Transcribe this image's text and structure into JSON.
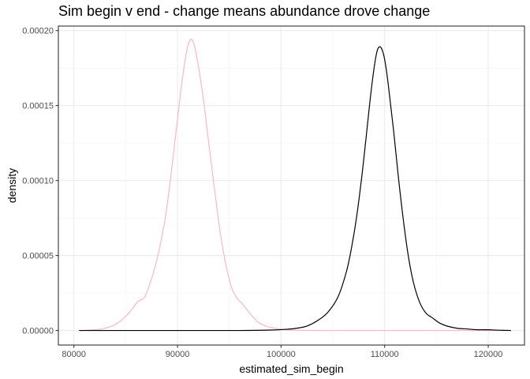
{
  "chart_data": {
    "type": "line",
    "title": "Sim begin v end - change means abundance drove change",
    "xlabel": "estimated_sim_begin",
    "ylabel": "density",
    "xlim": [
      78500,
      123500
    ],
    "ylim": [
      -9.7e-06,
      0.000203
    ],
    "x_ticks": [
      80000,
      90000,
      100000,
      110000,
      120000
    ],
    "x_tick_labels": [
      "80000",
      "90000",
      "100000",
      "110000",
      "120000"
    ],
    "y_ticks": [
      0,
      5e-05,
      0.0001,
      0.00015,
      0.0002
    ],
    "y_tick_labels": [
      "0.00000",
      "0.00005",
      "0.00010",
      "0.00015",
      "0.00020"
    ],
    "grid": true,
    "theme": "bw",
    "series": [
      {
        "color": "#ffb6c1",
        "x": [
          80500,
          82000,
          83000,
          84000,
          85000,
          85700,
          86200,
          86800,
          87300,
          87800,
          88300,
          88800,
          89200,
          89600,
          90000,
          90400,
          90800,
          91100,
          91400,
          91700,
          92000,
          92300,
          92600,
          93000,
          93400,
          93800,
          94200,
          94700,
          95200,
          95700,
          96300,
          96800,
          97300,
          97800,
          98500,
          99200,
          100000,
          101000,
          102000,
          104000,
          108000,
          114000,
          122200
        ],
        "y": [
          0,
          5e-07,
          1.5e-06,
          4e-06,
          9.5e-06,
          1.5e-05,
          1.95e-05,
          2.2e-05,
          3.05e-05,
          4.15e-05,
          5.6e-05,
          7.4e-05,
          9.4e-05,
          0.000117,
          0.000141,
          0.000164,
          0.000183,
          0.000192,
          0.000194,
          0.000188,
          0.000177,
          0.000164,
          0.000149,
          0.000126,
          0.000104,
          8.2e-05,
          6.2e-05,
          4.3e-05,
          2.9e-05,
          2.2e-05,
          1.75e-05,
          1.3e-05,
          9e-06,
          5.5e-06,
          3e-06,
          1.8e-06,
          8e-07,
          3e-07,
          1e-07,
          0,
          0,
          0,
          0
        ]
      },
      {
        "color": "#000000",
        "x": [
          80500,
          90000,
          96000,
          99000,
          100500,
          101500,
          102500,
          103500,
          104500,
          105500,
          106300,
          106800,
          107300,
          107800,
          108200,
          108600,
          109000,
          109300,
          109600,
          109900,
          110200,
          110500,
          110900,
          111300,
          111800,
          112300,
          112800,
          113400,
          114000,
          114600,
          115300,
          116000,
          117000,
          118000,
          119000,
          120000,
          121000,
          122200
        ],
        "y": [
          0,
          0,
          0,
          3e-07,
          8e-07,
          1.5e-06,
          3e-06,
          6.5e-06,
          1.2e-05,
          2.25e-05,
          3.9e-05,
          5.5e-05,
          7.6e-05,
          0.000103,
          0.000128,
          0.000154,
          0.000176,
          0.000187,
          0.000189,
          0.000184,
          0.000172,
          0.000155,
          0.000131,
          0.000104,
          7.4e-05,
          4.9e-05,
          3.15e-05,
          1.85e-05,
          1.15e-05,
          8.5e-06,
          5e-06,
          3e-06,
          1.5e-06,
          1e-06,
          5e-07,
          5e-07,
          2e-07,
          0
        ]
      }
    ]
  }
}
